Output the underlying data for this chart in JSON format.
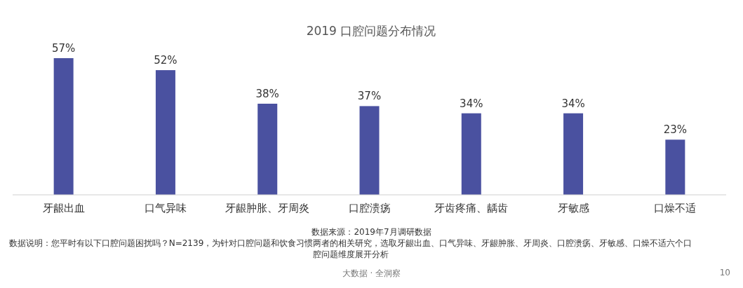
{
  "chart_data": {
    "type": "bar",
    "title": "2019 口腔问题分布情况",
    "categories": [
      "牙龈出血",
      "口气异味",
      "牙龈肿胀、牙周炎",
      "口腔溃疡",
      "牙齿疼痛、龋齿",
      "牙敏感",
      "口燥不适"
    ],
    "values": [
      57,
      52,
      38,
      37,
      34,
      34,
      23
    ],
    "value_labels": [
      "57%",
      "52%",
      "38%",
      "37%",
      "34%",
      "34%",
      "23%"
    ],
    "color": "#4a51a0",
    "annotations": [
      "数据来源：2019年7月调研数据",
      "数据说明：您平时有以下口腔问题困扰吗？N=2139，为针对口腔问题和饮食习惯两者的相关研究，选取牙龈出血、口气异味、牙龈肿胀、牙周炎、口腔溃疡、牙敏感、口燥不适六个口腔问题维度展开分析",
      "大数据 · 全洞察",
      "10"
    ]
  }
}
